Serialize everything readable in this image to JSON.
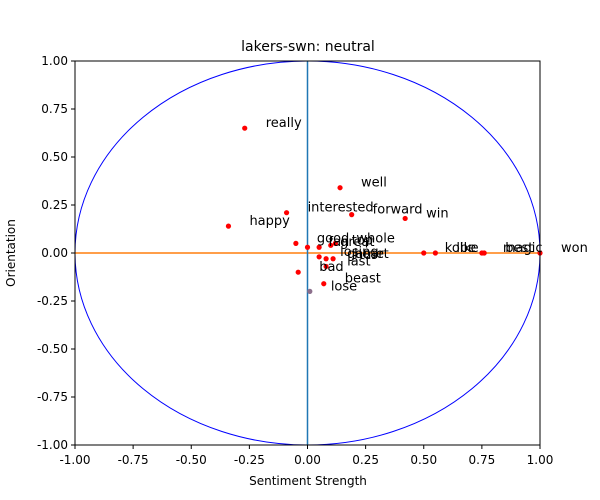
{
  "chart_data": {
    "type": "scatter",
    "title": "lakers-swn: neutral",
    "xlabel": "Sentiment Strength",
    "ylabel": "Orientation",
    "xlim": [
      -1.0,
      1.0
    ],
    "ylim": [
      -1.0,
      1.0
    ],
    "xticks": [
      "-1.00",
      "-0.75",
      "-0.50",
      "-0.25",
      "0.00",
      "0.25",
      "0.50",
      "0.75",
      "1.00"
    ],
    "yticks": [
      "-1.00",
      "-0.75",
      "-0.50",
      "-0.25",
      "0.00",
      "0.25",
      "0.50",
      "0.75",
      "1.00"
    ],
    "grid": false,
    "colors": {
      "points": "#ff0000",
      "circle": "#0000ff",
      "horizontal_axis_line": "#ff7f0e",
      "vertical_axis_line": "#1f77b4",
      "grey_point": "#8c6f8c"
    },
    "points": [
      {
        "label": "really",
        "x": -0.27,
        "y": 0.65
      },
      {
        "label": "well",
        "x": 0.14,
        "y": 0.34
      },
      {
        "label": "interested",
        "x": -0.09,
        "y": 0.21
      },
      {
        "label": "forward",
        "x": 0.19,
        "y": 0.2
      },
      {
        "label": "win",
        "x": 0.42,
        "y": 0.18
      },
      {
        "label": "happy",
        "x": -0.34,
        "y": 0.14
      },
      {
        "label": "good",
        "x": -0.05,
        "y": 0.05
      },
      {
        "label": "whole",
        "x": 0.12,
        "y": 0.05
      },
      {
        "label": "great",
        "x": 0.05,
        "y": 0.03
      },
      {
        "label": "top",
        "x": 0.1,
        "y": 0.04
      },
      {
        "label": "fan",
        "x": 0.0,
        "y": 0.03
      },
      {
        "label": "kobe",
        "x": 0.5,
        "y": 0.0
      },
      {
        "label": "like",
        "x": 0.55,
        "y": 0.0
      },
      {
        "label": "magic",
        "x": 0.75,
        "y": 0.0
      },
      {
        "label": "best",
        "x": 0.76,
        "y": 0.0
      },
      {
        "label": "won",
        "x": 1.0,
        "y": 0.0
      },
      {
        "label": "losing",
        "x": 0.05,
        "y": -0.02
      },
      {
        "label": "game",
        "x": 0.08,
        "y": -0.03
      },
      {
        "label": "bad",
        "x": -0.04,
        "y": -0.1
      },
      {
        "label": "last",
        "x": 0.08,
        "y": -0.07
      },
      {
        "label": "heart",
        "x": 0.11,
        "y": -0.03
      },
      {
        "label": "beast",
        "x": 0.07,
        "y": -0.16
      },
      {
        "label": "lose",
        "x": 0.01,
        "y": -0.2
      }
    ]
  }
}
